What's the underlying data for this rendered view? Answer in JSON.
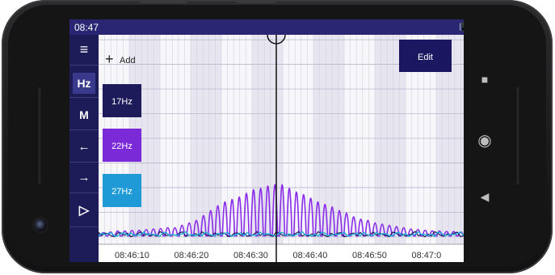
{
  "status": {
    "time": "08:47",
    "icons": [
      "vibrate-icon",
      "wifi-icon",
      "battery-icon"
    ]
  },
  "toolbar": {
    "menu_icon": "≡",
    "hz_label": "Hz",
    "m_label": "M",
    "back_icon": "←",
    "forward_icon": "→",
    "play_icon": "▷"
  },
  "add_label": "Add",
  "edit_label": "Edit",
  "frequencies": [
    {
      "label": "17Hz",
      "color": "#1e1b5a"
    },
    {
      "label": "22Hz",
      "color": "#7a2ad6"
    },
    {
      "label": "27Hz",
      "color": "#1f9ad6"
    }
  ],
  "nav": {
    "square": "■",
    "circle": "◉",
    "back": "◀"
  },
  "chart_data": {
    "type": "line",
    "x_tick_labels": [
      "08:46:10",
      "08:46:20",
      "08:46:30",
      "08:46:40",
      "08:46:50",
      "08:47:0"
    ],
    "y_ticks": [
      0,
      50,
      100,
      150,
      200,
      250,
      300,
      350,
      400
    ],
    "ylim": [
      -15,
      410
    ],
    "grid": true,
    "cursor_label": "08:46:30",
    "series": [
      {
        "color": "#8a2ce8",
        "peaks": [
          5,
          8,
          12,
          12,
          14,
          15,
          18,
          20,
          22,
          25,
          25,
          35,
          45,
          55,
          75,
          95,
          115,
          130,
          140,
          150,
          165,
          180,
          185,
          195,
          200,
          200,
          185,
          170,
          160,
          145,
          130,
          120,
          110,
          95,
          85,
          70,
          60,
          55,
          45,
          40,
          35,
          30,
          25,
          20,
          18,
          15,
          12,
          12,
          10,
          10,
          8
        ]
      },
      {
        "color": "#1e1b5a"
      },
      {
        "color": "#1fb0d8"
      }
    ]
  }
}
